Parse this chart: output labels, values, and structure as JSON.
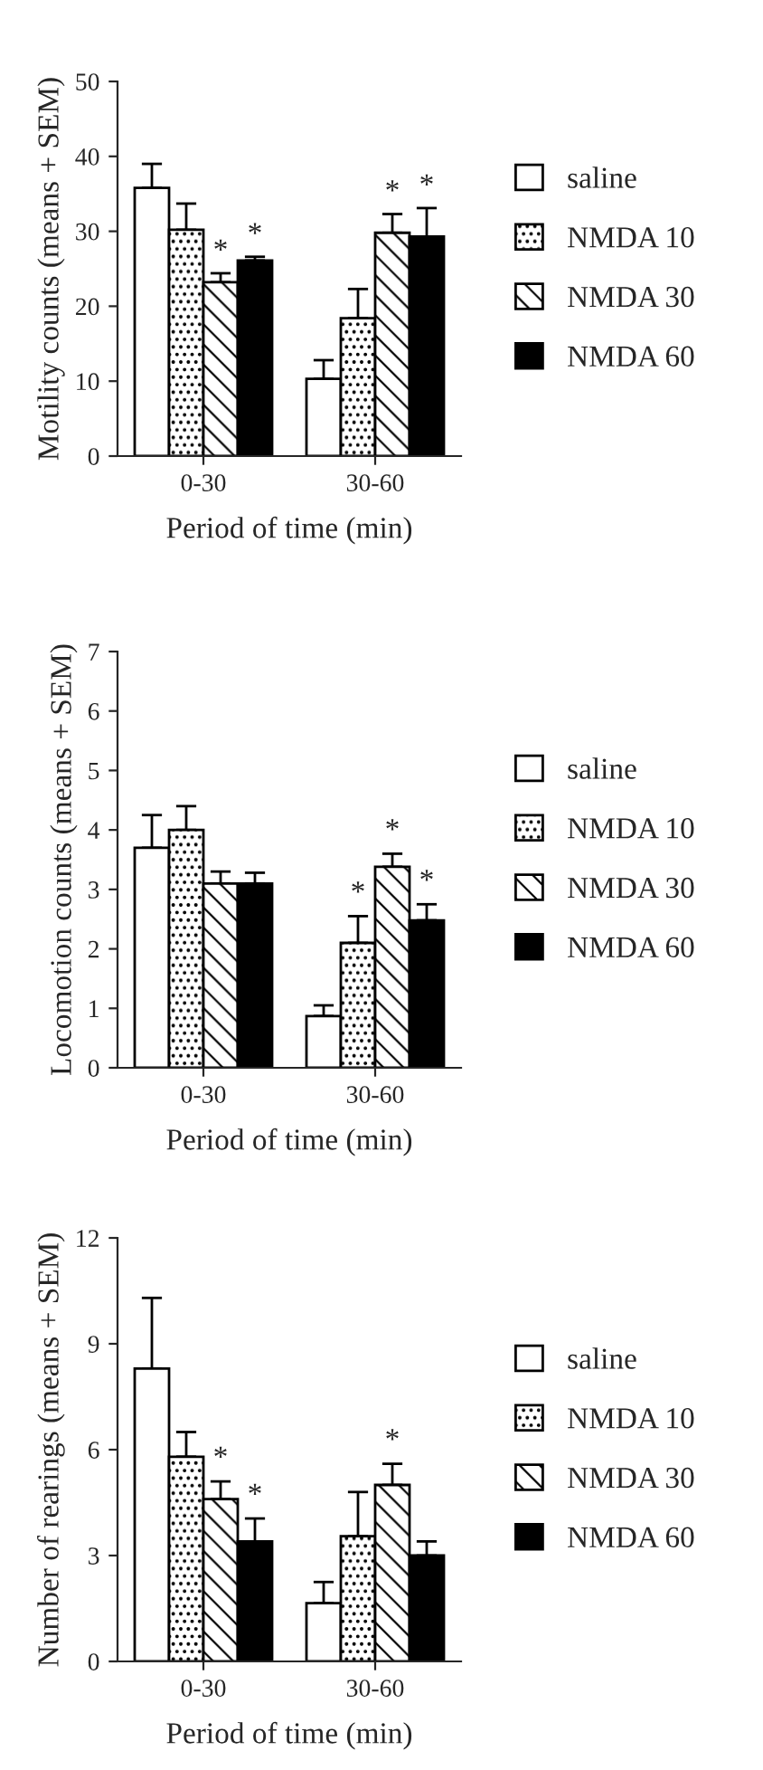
{
  "chart_data": [
    {
      "type": "bar",
      "ylabel": "Motility counts (means + SEM)",
      "xlabel": "Period of time (min)",
      "categories": [
        "0-30",
        "30-60"
      ],
      "ylim": [
        0,
        50
      ],
      "yticks": [
        0,
        10,
        20,
        30,
        40,
        50
      ],
      "legend": "right",
      "grid": false,
      "series": [
        {
          "name": "saline",
          "color": "#ffffff",
          "values": [
            35.8,
            10.3
          ],
          "errors": [
            [
              35.8,
              39.0
            ],
            [
              10.3,
              12.8
            ]
          ],
          "value_labels": [
            null,
            null
          ]
        },
        {
          "name": "NMDA 10",
          "color": "#ffffff",
          "values": [
            30.2,
            18.4
          ],
          "errors": [
            [
              30.2,
              33.7
            ],
            [
              18.4,
              22.3
            ]
          ],
          "value_labels": [
            null,
            null
          ]
        },
        {
          "name": "NMDA 30",
          "color": "#ffffff",
          "values": [
            23.2,
            29.8
          ],
          "errors": [
            [
              23.2,
              24.4
            ],
            [
              29.8,
              32.3
            ]
          ],
          "value_labels": [
            "*",
            "*"
          ]
        },
        {
          "name": "NMDA 60",
          "color": "#000000",
          "values": [
            26.1,
            29.3
          ],
          "errors": [
            [
              26.1,
              26.6
            ],
            [
              29.3,
              33.1
            ]
          ],
          "value_labels": [
            "*",
            "*"
          ]
        }
      ]
    },
    {
      "type": "bar",
      "ylabel": "Locomotion counts (means + SEM)",
      "xlabel": "Period of time (min)",
      "categories": [
        "0-30",
        "30-60"
      ],
      "ylim": [
        0,
        7
      ],
      "yticks": [
        0,
        1,
        2,
        3,
        4,
        5,
        6,
        7
      ],
      "legend": "right",
      "grid": false,
      "series": [
        {
          "name": "saline",
          "color": "#ffffff",
          "values": [
            3.7,
            0.87
          ],
          "errors": [
            [
              3.7,
              4.25
            ],
            [
              0.87,
              1.05
            ]
          ],
          "value_labels": [
            null,
            null
          ]
        },
        {
          "name": "NMDA 10",
          "color": "#ffffff",
          "values": [
            4.0,
            2.1
          ],
          "errors": [
            [
              4.0,
              4.4
            ],
            [
              2.1,
              2.55
            ]
          ],
          "value_labels": [
            null,
            "*"
          ]
        },
        {
          "name": "NMDA 30",
          "color": "#ffffff",
          "values": [
            3.1,
            3.38
          ],
          "errors": [
            [
              3.1,
              3.3
            ],
            [
              3.38,
              3.6
            ]
          ],
          "value_labels": [
            null,
            "*"
          ]
        },
        {
          "name": "NMDA 60",
          "color": "#000000",
          "values": [
            3.1,
            2.48
          ],
          "errors": [
            [
              3.1,
              3.28
            ],
            [
              2.48,
              2.75
            ]
          ],
          "value_labels": [
            null,
            "*"
          ]
        }
      ]
    },
    {
      "type": "bar",
      "ylabel": "Number of rearings (means + SEM)",
      "xlabel": "Period of time (min)",
      "categories": [
        "0-30",
        "30-60"
      ],
      "ylim": [
        0,
        12
      ],
      "yticks": [
        0,
        3,
        6,
        9,
        12
      ],
      "legend": "right",
      "grid": false,
      "series": [
        {
          "name": "saline",
          "color": "#ffffff",
          "values": [
            8.3,
            1.65
          ],
          "errors": [
            [
              8.3,
              10.3
            ],
            [
              1.65,
              2.25
            ]
          ],
          "value_labels": [
            null,
            null
          ]
        },
        {
          "name": "NMDA 10",
          "color": "#ffffff",
          "values": [
            5.8,
            3.55
          ],
          "errors": [
            [
              5.8,
              6.5
            ],
            [
              3.55,
              4.8
            ]
          ],
          "value_labels": [
            null,
            null
          ]
        },
        {
          "name": "NMDA 30",
          "color": "#ffffff",
          "values": [
            4.6,
            5.0
          ],
          "errors": [
            [
              4.6,
              5.1
            ],
            [
              5.0,
              5.6
            ]
          ],
          "value_labels": [
            "*",
            "*"
          ]
        },
        {
          "name": "NMDA 60",
          "color": "#000000",
          "values": [
            3.4,
            3.0
          ],
          "errors": [
            [
              3.4,
              4.05
            ],
            [
              3.0,
              3.4
            ]
          ],
          "value_labels": [
            "*",
            null
          ]
        }
      ]
    }
  ]
}
